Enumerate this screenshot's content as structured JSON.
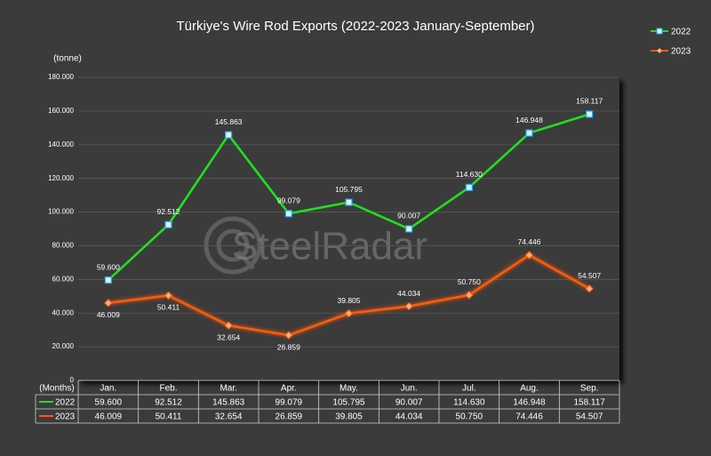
{
  "chart_data": {
    "type": "line",
    "title": "Türkiye's Wire Rod Exports (2022-2023 January-September)",
    "y_label": "(tonne)",
    "x_label": "(Months)",
    "watermark": "SteelRadar",
    "categories": [
      "Jan.",
      "Feb.",
      "Mar.",
      "Apr.",
      "May.",
      "Jun.",
      "Jul.",
      "Aug.",
      "Sep."
    ],
    "series": [
      {
        "name": "2022",
        "color": "#1fe01f",
        "values": [
          59600,
          92512,
          145863,
          99079,
          105795,
          90007,
          114630,
          146948,
          158117
        ],
        "value_labels": [
          "59.600",
          "92.512",
          "145.863",
          "99.079",
          "105.795",
          "90.007",
          "114.630",
          "146.948",
          "158.117"
        ]
      },
      {
        "name": "2023",
        "color": "#ff5a10",
        "values": [
          46009,
          50411,
          32654,
          26859,
          39805,
          44034,
          50750,
          74446,
          54507
        ],
        "value_labels": [
          "46.009",
          "50.411",
          "32.654",
          "26.859",
          "39.805",
          "44.034",
          "50.750",
          "74.446",
          "54.507"
        ]
      }
    ],
    "ylim": [
      0,
      180000
    ],
    "yticks": [
      0,
      {
        "value": 20000,
        "label": "20.000"
      },
      {
        "value": 40000,
        "label": "40.000"
      },
      {
        "value": 60000,
        "label": "60.000"
      },
      {
        "value": 80000,
        "label": "80.000"
      },
      {
        "value": 100000,
        "label": "100.000"
      },
      {
        "value": 120000,
        "label": "120.000"
      },
      {
        "value": 140000,
        "label": "140.000"
      },
      {
        "value": 160000,
        "label": "160.000"
      },
      {
        "value": 180000,
        "label": "180.000"
      }
    ],
    "grid": true,
    "legend": "top-right"
  }
}
